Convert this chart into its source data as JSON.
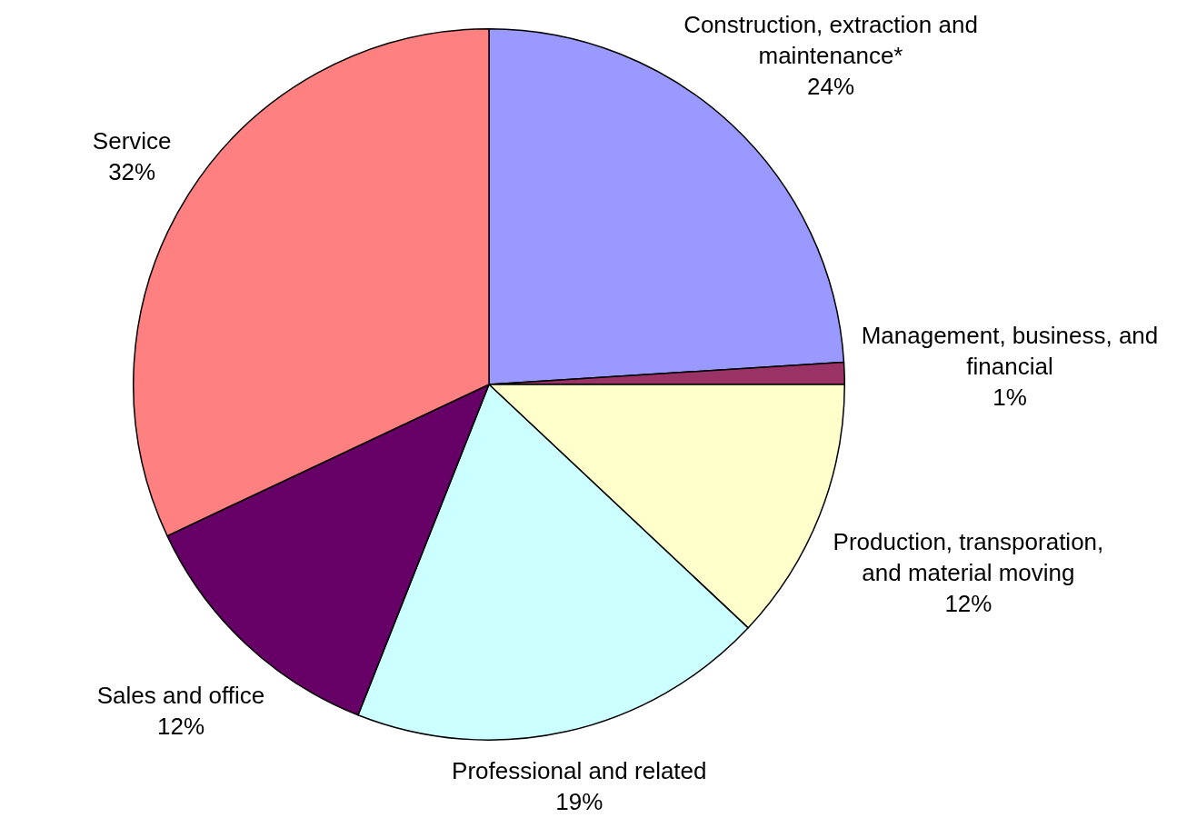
{
  "chart_data": {
    "type": "pie",
    "categories": [
      "Construction, extraction and maintenance*",
      "Management, business, and financial",
      "Production, transporation, and material moving",
      "Professional and related",
      "Sales and office",
      "Service"
    ],
    "values": [
      24,
      1,
      12,
      19,
      12,
      32
    ],
    "colors": [
      "#9999ff",
      "#993366",
      "#ffffcc",
      "#ccffff",
      "#660066",
      "#ff8080"
    ],
    "value_labels": [
      "24%",
      "1%",
      "12%",
      "19%",
      "12%",
      "32%"
    ],
    "legend": false
  }
}
